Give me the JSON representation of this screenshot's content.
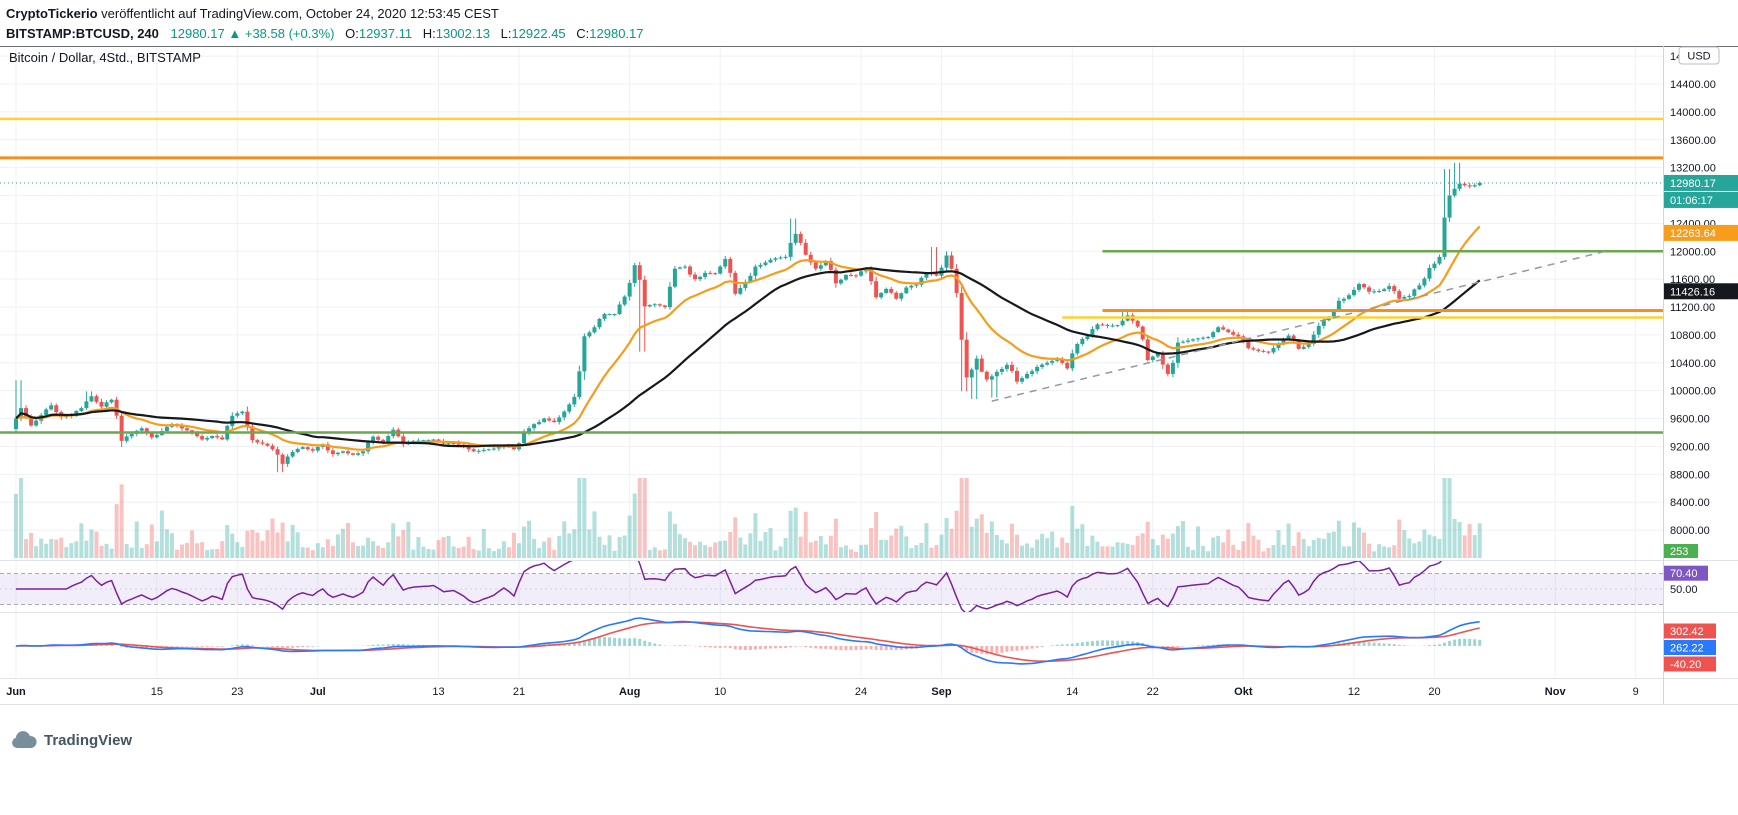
{
  "header": {
    "author": "CryptoTickerio",
    "published": "veröffentlicht auf TradingView.com, October 24, 2020 12:53:45 CEST",
    "symbol": "BITSTAMP:BTCUSD, 240",
    "last_price": "12980.17",
    "change": "▲ +38.58 (+0.3%)",
    "ohlc": {
      "o_label": "O:",
      "o": "12937.11",
      "h_label": "H:",
      "h": "13002.13",
      "l_label": "L:",
      "l": "12922.45",
      "c_label": "C:",
      "c": "12980.17"
    }
  },
  "legend": "Bitcoin / Dollar, 4Std., BITSTAMP",
  "axis": {
    "currency": "USD"
  },
  "footer": {
    "logo_text": "TradingView"
  },
  "colors": {
    "up": "#26a69a",
    "down": "#ef5350",
    "ema": "#f89c1c",
    "sma": "#15181c",
    "rsi": "#7b1fa2",
    "rsi_label": "#7e57c2",
    "macd": "#2979ff",
    "signal": "#ef5350",
    "accent_green": "#089981",
    "volume_label_bg": "#4caf50"
  },
  "chart_data": {
    "type": "candlestick",
    "title": "Bitcoin / Dollar, 4Std., BITSTAMP",
    "symbol": "BITSTAMP:BTCUSD",
    "interval": "240",
    "price_axis": {
      "min": 8000,
      "max": 14800,
      "step": 400
    },
    "time_axis": [
      {
        "label": "Jun",
        "day": 0
      },
      {
        "label": "15",
        "day": 14
      },
      {
        "label": "23",
        "day": 22
      },
      {
        "label": "Jul",
        "day": 30
      },
      {
        "label": "13",
        "day": 42
      },
      {
        "label": "21",
        "day": 50
      },
      {
        "label": "Aug",
        "day": 61
      },
      {
        "label": "10",
        "day": 70
      },
      {
        "label": "24",
        "day": 84
      },
      {
        "label": "Sep",
        "day": 92
      },
      {
        "label": "14",
        "day": 105
      },
      {
        "label": "22",
        "day": 113
      },
      {
        "label": "Okt",
        "day": 122
      },
      {
        "label": "12",
        "day": 133
      },
      {
        "label": "20",
        "day": 141
      },
      {
        "label": "Nov",
        "day": 153
      },
      {
        "label": "9",
        "day": 161
      }
    ],
    "start_price": 9450,
    "daily_closes": [
      9750,
      9500,
      9650,
      9790,
      9620,
      9660,
      9750,
      9920,
      9770,
      9870,
      9280,
      9380,
      9460,
      9330,
      9420,
      9520,
      9460,
      9390,
      9300,
      9350,
      9300,
      9640,
      9700,
      9290,
      9240,
      9160,
      8950,
      9120,
      9190,
      9140,
      9230,
      9090,
      9130,
      9080,
      9130,
      9340,
      9250,
      9440,
      9230,
      9280,
      9290,
      9300,
      9240,
      9250,
      9200,
      9130,
      9150,
      9170,
      9210,
      9160,
      9390,
      9520,
      9600,
      9550,
      9700,
      9910,
      10780,
      10910,
      11100,
      11100,
      11350,
      11800,
      11210,
      11240,
      11200,
      11750,
      11780,
      11600,
      11690,
      11680,
      11890,
      11390,
      11560,
      11780,
      11840,
      11900,
      11920,
      12250,
      11950,
      11750,
      11860,
      11540,
      11660,
      11650,
      11760,
      11340,
      11460,
      11320,
      11480,
      11520,
      11690,
      11650,
      11940,
      11400,
      10190,
      10460,
      10160,
      10270,
      10370,
      10130,
      10240,
      10340,
      10400,
      10450,
      10320,
      10670,
      10780,
      10950,
      10930,
      10940,
      11080,
      10920,
      10440,
      10530,
      10240,
      10690,
      10720,
      10750,
      10770,
      10910,
      10840,
      10780,
      10610,
      10570,
      10550,
      10670,
      10790,
      10600,
      10670,
      10930,
      11060,
      11290,
      11370,
      11530,
      11420,
      11430,
      11500,
      11320,
      11360,
      11510,
      11760,
      11920,
      12800,
      12970,
      12930,
      12980
    ],
    "wick_overrides": [
      {
        "day": 0,
        "high": 10150
      },
      {
        "day": 7,
        "high": 9990
      },
      {
        "day": 26,
        "low": 8830
      },
      {
        "day": 62,
        "low": 10560
      },
      {
        "day": 77,
        "high": 12470
      },
      {
        "day": 91,
        "high": 12060
      },
      {
        "day": 94,
        "low": 9990
      },
      {
        "day": 95,
        "low": 9880
      },
      {
        "day": 97,
        "low": 9900
      },
      {
        "day": 110,
        "high": 11170
      },
      {
        "day": 142,
        "high": 13180
      },
      {
        "day": 143,
        "high": 13270
      }
    ],
    "volume_spikes": {
      "0": 2.0,
      "10": 1.7,
      "14": 1.5,
      "26": 1.6,
      "56": 2.4,
      "57": 1.8,
      "61": 1.6,
      "62": 2.2,
      "77": 1.4,
      "91": 1.4,
      "94": 3.0,
      "95": 2.0,
      "96": 1.5,
      "142": 2.4,
      "143": 2.0,
      "144": 1.3
    },
    "levels": [
      {
        "name": "resistance-upper",
        "price": 13900,
        "color": "#ffd02e",
        "width": 2.5
      },
      {
        "name": "resistance-main",
        "price": 13340,
        "color": "#f3901d",
        "width": 3
      },
      {
        "name": "resistance-12000",
        "price": 12000,
        "color": "#6aa84f",
        "width": 2.5,
        "from_day": 108
      },
      {
        "name": "support-11150",
        "price": 11150,
        "color": "#f3901d",
        "width": 3,
        "from_day": 108
      },
      {
        "name": "support-11050",
        "price": 11050,
        "color": "#ffd02e",
        "width": 2.5,
        "from_day": 104
      },
      {
        "name": "support-9400",
        "price": 9400,
        "color": "#6aa84f",
        "width": 2.5
      }
    ],
    "trendline": {
      "from": {
        "day": 97,
        "price": 9850
      },
      "to": {
        "day": 158,
        "price": 12000
      },
      "style": "dashed",
      "color": "#9598a1"
    },
    "current_price": 12980.17,
    "countdown": "01:06:17",
    "ma_labels": [
      {
        "value": "12263.64",
        "color": "#f89c1c"
      },
      {
        "value": "11426.16",
        "color": "#15181c"
      }
    ],
    "volume_label": "253",
    "rsi": {
      "current": "70.40",
      "mid_label": "50.00",
      "band": [
        30,
        70
      ]
    },
    "macd_labels": [
      {
        "value": "302.42",
        "color": "#ef5350"
      },
      {
        "value": "262.22",
        "color": "#2979ff"
      },
      {
        "value": "-40.20",
        "color": "#ef5350"
      }
    ]
  }
}
